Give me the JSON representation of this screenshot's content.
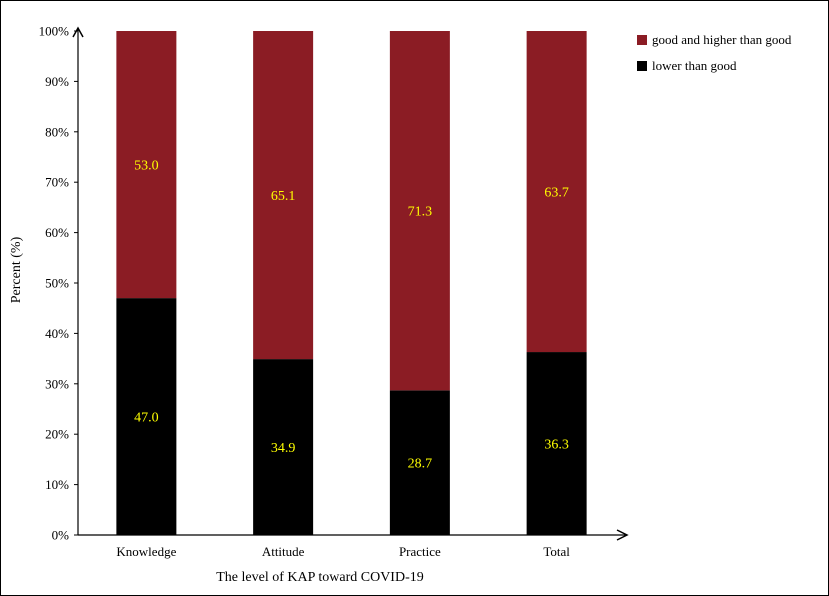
{
  "chart_data": {
    "type": "bar",
    "stacked": true,
    "categories": [
      "Knowledge",
      "Attitude",
      "Practice",
      "Total"
    ],
    "series": [
      {
        "name": "lower than good",
        "values": [
          47.0,
          34.9,
          28.7,
          36.3
        ],
        "color": "#000000",
        "labels": [
          "47.0",
          "34.9",
          "28.7",
          "36.3"
        ]
      },
      {
        "name": "good and higher than good",
        "values": [
          53.0,
          65.1,
          71.3,
          63.7
        ],
        "color": "#8b1c24",
        "labels": [
          "53.0",
          "65.1",
          "71.3",
          "63.7"
        ]
      }
    ],
    "legend_order": [
      "good and higher than good",
      "lower than good"
    ],
    "xlabel": "The level of KAP toward COVID-19",
    "ylabel": "Percent (%)",
    "ylim": [
      0,
      100
    ],
    "yticks": [
      "0%",
      "10%",
      "20%",
      "30%",
      "40%",
      "50%",
      "60%",
      "70%",
      "80%",
      "90%",
      "100%"
    ],
    "label_color": "#ffff00",
    "grid": false,
    "legend_position": "top-right"
  }
}
